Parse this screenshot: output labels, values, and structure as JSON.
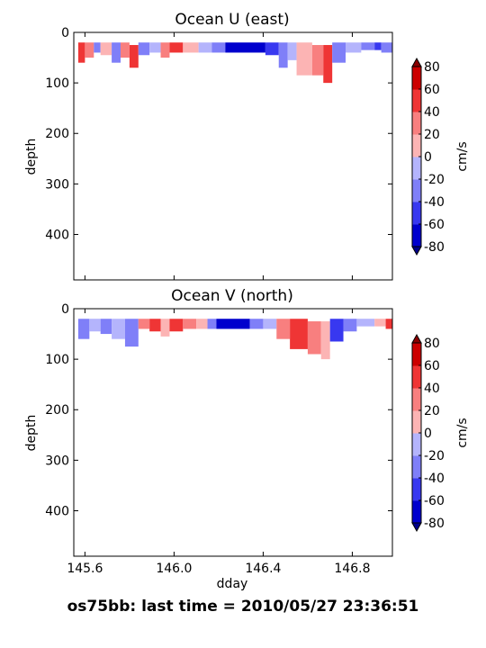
{
  "footer_title": "os75bb: last time = 2010/05/27 23:36:51",
  "colors": {
    "levels": [
      -80,
      -60,
      -40,
      -20,
      0,
      20,
      40,
      60,
      80
    ],
    "bands": [
      "#0000cd",
      "#3838f0",
      "#7f7ff8",
      "#b4b4fc",
      "#fcb4b4",
      "#f87f7f",
      "#ef3535",
      "#cc0000"
    ],
    "under": "#00008b",
    "over": "#8b0000"
  },
  "chart_data": [
    {
      "type": "heatmap",
      "title": "Ocean U (east)",
      "xlabel": "",
      "ylabel": "depth",
      "xlim": [
        145.55,
        146.98
      ],
      "ylim": [
        490,
        0
      ],
      "yticks": [
        0,
        100,
        200,
        300,
        400
      ],
      "xticks": [
        145.6,
        146.0,
        146.4,
        146.8
      ],
      "xtick_labels": [],
      "colorbar": {
        "label": "cm/s",
        "ticks": [
          80,
          60,
          40,
          20,
          0,
          -20,
          -40,
          -60,
          -80
        ]
      },
      "cells": [
        {
          "x0": 145.57,
          "x1": 145.6,
          "z0": 20,
          "z1": 60,
          "value": 50
        },
        {
          "x0": 145.6,
          "x1": 145.64,
          "z0": 20,
          "z1": 50,
          "value": 30
        },
        {
          "x0": 145.64,
          "x1": 145.67,
          "z0": 20,
          "z1": 40,
          "value": -30
        },
        {
          "x0": 145.67,
          "x1": 145.72,
          "z0": 20,
          "z1": 45,
          "value": 10
        },
        {
          "x0": 145.72,
          "x1": 145.76,
          "z0": 20,
          "z1": 60,
          "value": -30
        },
        {
          "x0": 145.76,
          "x1": 145.8,
          "z0": 20,
          "z1": 50,
          "value": 30
        },
        {
          "x0": 145.8,
          "x1": 145.84,
          "z0": 25,
          "z1": 70,
          "value": 50
        },
        {
          "x0": 145.84,
          "x1": 145.89,
          "z0": 20,
          "z1": 45,
          "value": -30
        },
        {
          "x0": 145.89,
          "x1": 145.94,
          "z0": 20,
          "z1": 40,
          "value": -10
        },
        {
          "x0": 145.94,
          "x1": 145.98,
          "z0": 20,
          "z1": 50,
          "value": 30
        },
        {
          "x0": 145.98,
          "x1": 146.04,
          "z0": 20,
          "z1": 40,
          "value": 55
        },
        {
          "x0": 146.04,
          "x1": 146.11,
          "z0": 20,
          "z1": 40,
          "value": 10
        },
        {
          "x0": 146.11,
          "x1": 146.17,
          "z0": 20,
          "z1": 40,
          "value": -10
        },
        {
          "x0": 146.17,
          "x1": 146.23,
          "z0": 20,
          "z1": 40,
          "value": -30
        },
        {
          "x0": 146.23,
          "x1": 146.41,
          "z0": 20,
          "z1": 40,
          "value": -70
        },
        {
          "x0": 146.41,
          "x1": 146.47,
          "z0": 20,
          "z1": 45,
          "value": -55
        },
        {
          "x0": 146.47,
          "x1": 146.51,
          "z0": 20,
          "z1": 70,
          "value": -30
        },
        {
          "x0": 146.51,
          "x1": 146.55,
          "z0": 20,
          "z1": 55,
          "value": -10
        },
        {
          "x0": 146.55,
          "x1": 146.62,
          "z0": 20,
          "z1": 85,
          "value": 10
        },
        {
          "x0": 146.62,
          "x1": 146.67,
          "z0": 25,
          "z1": 85,
          "value": 30
        },
        {
          "x0": 146.67,
          "x1": 146.71,
          "z0": 25,
          "z1": 100,
          "value": 55
        },
        {
          "x0": 146.71,
          "x1": 146.77,
          "z0": 20,
          "z1": 60,
          "value": -30
        },
        {
          "x0": 146.77,
          "x1": 146.84,
          "z0": 20,
          "z1": 40,
          "value": -10
        },
        {
          "x0": 146.84,
          "x1": 146.9,
          "z0": 20,
          "z1": 35,
          "value": -30
        },
        {
          "x0": 146.9,
          "x1": 146.93,
          "z0": 20,
          "z1": 35,
          "value": -55
        },
        {
          "x0": 146.93,
          "x1": 146.98,
          "z0": 20,
          "z1": 40,
          "value": -30
        }
      ]
    },
    {
      "type": "heatmap",
      "title": "Ocean V (north)",
      "xlabel": "dday",
      "ylabel": "depth",
      "xlim": [
        145.55,
        146.98
      ],
      "ylim": [
        490,
        0
      ],
      "yticks": [
        0,
        100,
        200,
        300,
        400
      ],
      "xticks": [
        145.6,
        146.0,
        146.4,
        146.8
      ],
      "xtick_labels": [
        "145.6",
        "146.0",
        "146.4",
        "146.8"
      ],
      "colorbar": {
        "label": "cm/s",
        "ticks": [
          80,
          60,
          40,
          20,
          0,
          -20,
          -40,
          -60,
          -80
        ]
      },
      "cells": [
        {
          "x0": 145.57,
          "x1": 145.62,
          "z0": 20,
          "z1": 60,
          "value": -30
        },
        {
          "x0": 145.62,
          "x1": 145.67,
          "z0": 20,
          "z1": 45,
          "value": -10
        },
        {
          "x0": 145.67,
          "x1": 145.72,
          "z0": 20,
          "z1": 50,
          "value": -30
        },
        {
          "x0": 145.72,
          "x1": 145.78,
          "z0": 20,
          "z1": 60,
          "value": -10
        },
        {
          "x0": 145.78,
          "x1": 145.84,
          "z0": 20,
          "z1": 75,
          "value": -30
        },
        {
          "x0": 145.84,
          "x1": 145.89,
          "z0": 20,
          "z1": 40,
          "value": 30
        },
        {
          "x0": 145.89,
          "x1": 145.94,
          "z0": 20,
          "z1": 45,
          "value": 55
        },
        {
          "x0": 145.94,
          "x1": 145.98,
          "z0": 20,
          "z1": 55,
          "value": 10
        },
        {
          "x0": 145.98,
          "x1": 146.04,
          "z0": 20,
          "z1": 45,
          "value": 55
        },
        {
          "x0": 146.04,
          "x1": 146.1,
          "z0": 20,
          "z1": 40,
          "value": 30
        },
        {
          "x0": 146.1,
          "x1": 146.15,
          "z0": 20,
          "z1": 40,
          "value": 10
        },
        {
          "x0": 146.15,
          "x1": 146.19,
          "z0": 20,
          "z1": 40,
          "value": -30
        },
        {
          "x0": 146.19,
          "x1": 146.34,
          "z0": 20,
          "z1": 40,
          "value": -70
        },
        {
          "x0": 146.34,
          "x1": 146.4,
          "z0": 20,
          "z1": 40,
          "value": -30
        },
        {
          "x0": 146.4,
          "x1": 146.46,
          "z0": 20,
          "z1": 40,
          "value": -10
        },
        {
          "x0": 146.46,
          "x1": 146.52,
          "z0": 20,
          "z1": 60,
          "value": 30
        },
        {
          "x0": 146.52,
          "x1": 146.6,
          "z0": 20,
          "z1": 80,
          "value": 50
        },
        {
          "x0": 146.6,
          "x1": 146.66,
          "z0": 25,
          "z1": 90,
          "value": 30
        },
        {
          "x0": 146.66,
          "x1": 146.7,
          "z0": 25,
          "z1": 100,
          "value": 10
        },
        {
          "x0": 146.7,
          "x1": 146.76,
          "z0": 20,
          "z1": 65,
          "value": -55
        },
        {
          "x0": 146.76,
          "x1": 146.82,
          "z0": 20,
          "z1": 45,
          "value": -30
        },
        {
          "x0": 146.82,
          "x1": 146.9,
          "z0": 20,
          "z1": 35,
          "value": -10
        },
        {
          "x0": 146.9,
          "x1": 146.95,
          "z0": 20,
          "z1": 35,
          "value": 10
        },
        {
          "x0": 146.95,
          "x1": 146.98,
          "z0": 20,
          "z1": 40,
          "value": 55
        }
      ]
    }
  ]
}
